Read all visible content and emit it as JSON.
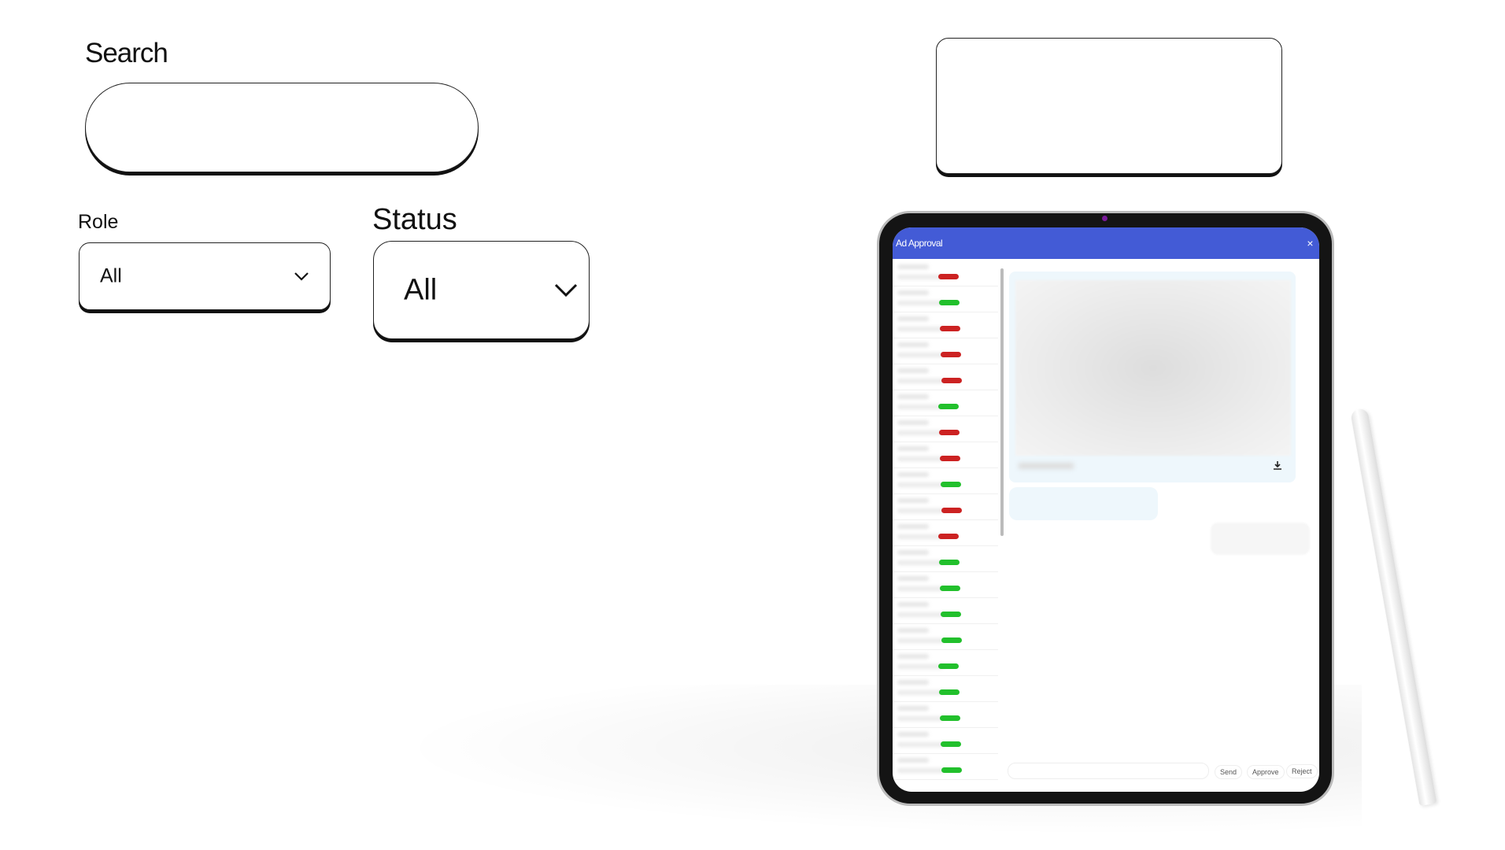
{
  "filters": {
    "search_label": "Search",
    "search_value": "",
    "role_label": "Role",
    "role_value": "All",
    "status_label": "Status",
    "status_value": "All"
  },
  "tablet": {
    "title": "Ad Approval",
    "close": "×",
    "list_statuses": [
      "rejected",
      "approved",
      "rejected",
      "rejected",
      "rejected",
      "approved",
      "rejected",
      "rejected",
      "approved",
      "rejected",
      "rejected",
      "approved",
      "approved",
      "approved",
      "approved",
      "approved",
      "approved",
      "approved",
      "approved",
      "approved"
    ],
    "colors": {
      "header": "#435bd6",
      "approved": "#22c02c",
      "rejected": "#cc2222"
    },
    "message_input": "",
    "send": "Send",
    "approve": "Approve",
    "reject": "Reject"
  }
}
